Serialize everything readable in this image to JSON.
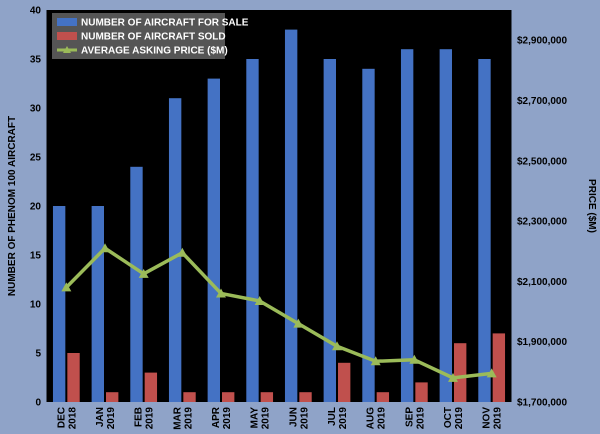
{
  "chart_data": {
    "type": "bar",
    "categories": [
      [
        "DEC",
        "2018"
      ],
      [
        "JAN",
        "2019"
      ],
      [
        "FEB",
        "2019"
      ],
      [
        "MAR",
        "2019"
      ],
      [
        "APR",
        "2019"
      ],
      [
        "MAY",
        "2019"
      ],
      [
        "JUN",
        "2019"
      ],
      [
        "JUL",
        "2019"
      ],
      [
        "AUG",
        "2019"
      ],
      [
        "SEP",
        "2019"
      ],
      [
        "OCT",
        "2019"
      ],
      [
        "NOV",
        "2019"
      ]
    ],
    "series": [
      {
        "name": "NUMBER OF AIRCRAFT FOR SALE",
        "type": "bar",
        "axis": "left",
        "color": "#4472c4",
        "values": [
          20,
          20,
          24,
          31,
          33,
          35,
          38,
          35,
          34,
          36,
          36,
          35
        ]
      },
      {
        "name": "NUMBER OF AIRCRAFT SOLD",
        "type": "bar",
        "axis": "left",
        "color": "#c0504d",
        "values": [
          5,
          1,
          3,
          1,
          1,
          1,
          1,
          4,
          1,
          2,
          6,
          7
        ]
      },
      {
        "name": "AVERAGE ASKING PRICE ($M)",
        "type": "line",
        "axis": "right",
        "color": "#9bbb59",
        "values": [
          2080000,
          2210000,
          2125000,
          2195000,
          2060000,
          2035000,
          1960000,
          1885000,
          1835000,
          1840000,
          1780000,
          1795000
        ]
      }
    ],
    "ylabel": "NUMBER OF PHENOM 100 AIRCRAFT",
    "ylabel_right": "PRICE ($M)",
    "ylim": [
      0,
      40
    ],
    "yticks": [
      0,
      5,
      10,
      15,
      20,
      25,
      30,
      35,
      40
    ],
    "ylim_right": [
      1700000,
      3000000
    ],
    "yticks_right": [
      1700000,
      1900000,
      2100000,
      2300000,
      2500000,
      2700000,
      2900000
    ],
    "yticks_right_labels": [
      "$1,700,000",
      "$1,900,000",
      "$2,100,000",
      "$2,300,000",
      "$2,500,000",
      "$2,700,000",
      "$2,900,000"
    ],
    "legend": "top-left",
    "grid": false,
    "plot_background": "#000000"
  }
}
